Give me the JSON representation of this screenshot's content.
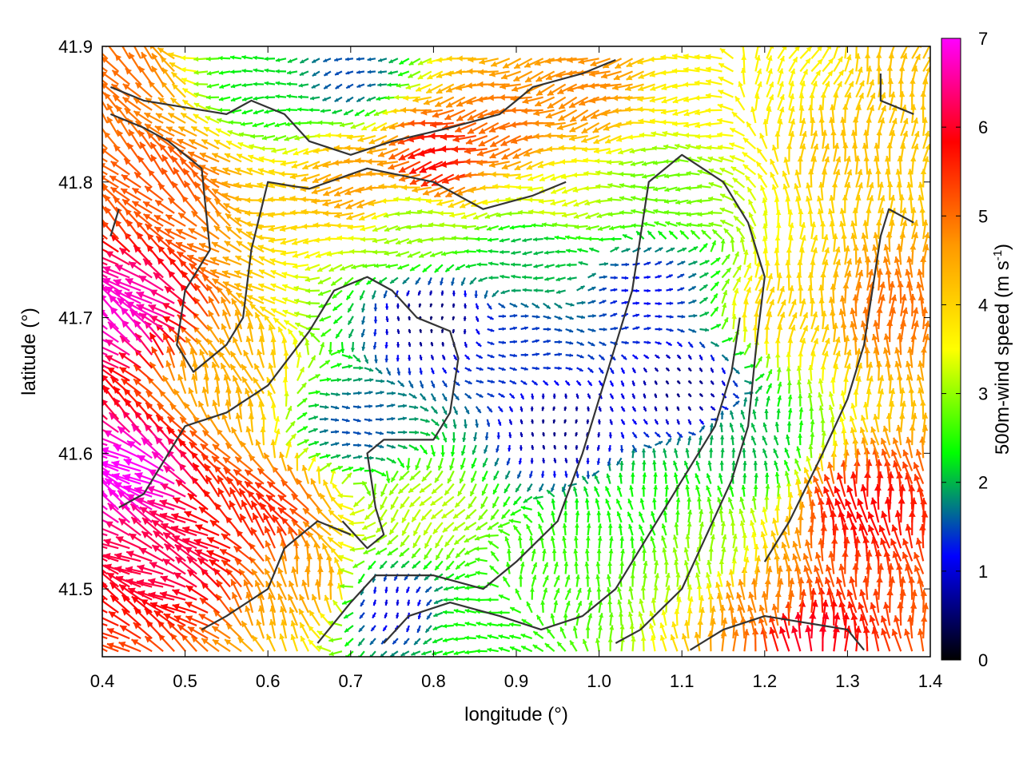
{
  "chart_data": {
    "type": "vector-field",
    "xlabel": "longitude (°)",
    "ylabel": "latitude (°)",
    "xlim": [
      0.4,
      1.4
    ],
    "ylim": [
      41.45,
      41.9
    ],
    "xticks": [
      "0.4",
      "0.5",
      "0.6",
      "0.7",
      "0.8",
      "0.9",
      "1.0",
      "1.1",
      "1.2",
      "1.3",
      "1.4"
    ],
    "yticks": [
      "41.5",
      "41.6",
      "41.7",
      "41.8",
      "41.9"
    ],
    "colorbar": {
      "label_main": "500m-wind speed (m s",
      "label_sup": "-1",
      "label_end": ")",
      "range": [
        0,
        7
      ],
      "ticks": [
        "0",
        "1",
        "2",
        "3",
        "4",
        "5",
        "6",
        "7"
      ],
      "palette": [
        "#000000",
        "#0000ff",
        "#00ff00",
        "#ffff00",
        "#ff9900",
        "#ff0000",
        "#ff00ff"
      ]
    },
    "regions": [
      {
        "lon": 0.44,
        "lat": 41.58,
        "speed": 7.0,
        "dir_deg": 150
      },
      {
        "lon": 0.43,
        "lat": 41.7,
        "speed": 6.8,
        "dir_deg": 145
      },
      {
        "lon": 0.5,
        "lat": 41.52,
        "speed": 6.2,
        "dir_deg": 155
      },
      {
        "lon": 0.6,
        "lat": 41.55,
        "speed": 5.6,
        "dir_deg": 130
      },
      {
        "lon": 0.48,
        "lat": 41.8,
        "speed": 5.2,
        "dir_deg": 135
      },
      {
        "lon": 0.65,
        "lat": 41.5,
        "speed": 4.6,
        "dir_deg": 100
      },
      {
        "lon": 0.55,
        "lat": 41.65,
        "speed": 4.4,
        "dir_deg": 110
      },
      {
        "lon": 0.42,
        "lat": 41.87,
        "speed": 5.0,
        "dir_deg": 130
      },
      {
        "lon": 0.6,
        "lat": 41.87,
        "speed": 2.2,
        "dir_deg": 185
      },
      {
        "lon": 0.7,
        "lat": 41.88,
        "speed": 1.5,
        "dir_deg": 200
      },
      {
        "lon": 0.82,
        "lat": 41.82,
        "speed": 5.8,
        "dir_deg": 195
      },
      {
        "lon": 0.9,
        "lat": 41.84,
        "speed": 5.0,
        "dir_deg": 195
      },
      {
        "lon": 0.72,
        "lat": 41.8,
        "speed": 4.6,
        "dir_deg": 190
      },
      {
        "lon": 0.78,
        "lat": 41.77,
        "speed": 3.0,
        "dir_deg": 185
      },
      {
        "lon": 0.95,
        "lat": 41.79,
        "speed": 3.4,
        "dir_deg": 188
      },
      {
        "lon": 1.0,
        "lat": 41.87,
        "speed": 4.8,
        "dir_deg": 200
      },
      {
        "lon": 1.12,
        "lat": 41.87,
        "speed": 3.6,
        "dir_deg": 185
      },
      {
        "lon": 0.92,
        "lat": 41.75,
        "speed": 2.0,
        "dir_deg": 180
      },
      {
        "lon": 0.8,
        "lat": 41.7,
        "speed": 0.5,
        "dir_deg": 270
      },
      {
        "lon": 0.9,
        "lat": 41.68,
        "speed": 1.4,
        "dir_deg": 0
      },
      {
        "lon": 0.95,
        "lat": 41.62,
        "speed": 0.6,
        "dir_deg": 270
      },
      {
        "lon": 1.05,
        "lat": 41.72,
        "speed": 1.2,
        "dir_deg": 10
      },
      {
        "lon": 1.1,
        "lat": 41.65,
        "speed": 0.6,
        "dir_deg": 300
      },
      {
        "lon": 0.7,
        "lat": 41.62,
        "speed": 1.5,
        "dir_deg": 0
      },
      {
        "lon": 0.8,
        "lat": 41.56,
        "speed": 3.2,
        "dir_deg": 230
      },
      {
        "lon": 0.75,
        "lat": 41.49,
        "speed": 1.0,
        "dir_deg": 250
      },
      {
        "lon": 0.86,
        "lat": 41.47,
        "speed": 2.4,
        "dir_deg": 180
      },
      {
        "lon": 0.95,
        "lat": 41.5,
        "speed": 2.6,
        "dir_deg": 80
      },
      {
        "lon": 1.05,
        "lat": 41.55,
        "speed": 2.4,
        "dir_deg": 100
      },
      {
        "lon": 1.12,
        "lat": 41.52,
        "speed": 3.0,
        "dir_deg": 90
      },
      {
        "lon": 1.2,
        "lat": 41.48,
        "speed": 4.8,
        "dir_deg": 95
      },
      {
        "lon": 1.32,
        "lat": 41.55,
        "speed": 5.8,
        "dir_deg": 100
      },
      {
        "lon": 1.35,
        "lat": 41.7,
        "speed": 5.0,
        "dir_deg": 90
      },
      {
        "lon": 1.3,
        "lat": 41.82,
        "speed": 4.2,
        "dir_deg": 85
      },
      {
        "lon": 1.22,
        "lat": 41.88,
        "speed": 3.6,
        "dir_deg": 60
      },
      {
        "lon": 1.22,
        "lat": 41.7,
        "speed": 4.0,
        "dir_deg": 80
      },
      {
        "lon": 1.18,
        "lat": 41.6,
        "speed": 2.0,
        "dir_deg": 100
      },
      {
        "lon": 1.25,
        "lat": 41.46,
        "speed": 6.0,
        "dir_deg": 95
      },
      {
        "lon": 1.08,
        "lat": 41.8,
        "speed": 2.8,
        "dir_deg": 180
      },
      {
        "lon": 1.38,
        "lat": 41.88,
        "speed": 4.2,
        "dir_deg": 75
      }
    ],
    "contours": [
      [
        [
          0.41,
          41.87
        ],
        [
          0.45,
          41.86
        ],
        [
          0.5,
          41.855
        ],
        [
          0.55,
          41.85
        ],
        [
          0.58,
          41.86
        ],
        [
          0.62,
          41.85
        ],
        [
          0.65,
          41.83
        ],
        [
          0.7,
          41.82
        ],
        [
          0.75,
          41.83
        ],
        [
          0.82,
          41.84
        ],
        [
          0.88,
          41.85
        ],
        [
          0.92,
          41.87
        ],
        [
          0.98,
          41.88
        ],
        [
          1.02,
          41.89
        ]
      ],
      [
        [
          0.41,
          41.85
        ],
        [
          0.45,
          41.84
        ],
        [
          0.48,
          41.83
        ],
        [
          0.52,
          41.81
        ],
        [
          0.53,
          41.75
        ],
        [
          0.5,
          41.72
        ],
        [
          0.49,
          41.68
        ],
        [
          0.51,
          41.66
        ],
        [
          0.55,
          41.68
        ],
        [
          0.57,
          41.7
        ],
        [
          0.58,
          41.75
        ],
        [
          0.6,
          41.8
        ],
        [
          0.65,
          41.795
        ],
        [
          0.72,
          41.81
        ],
        [
          0.8,
          41.8
        ],
        [
          0.86,
          41.78
        ],
        [
          0.92,
          41.79
        ],
        [
          0.96,
          41.8
        ]
      ],
      [
        [
          0.42,
          41.56
        ],
        [
          0.45,
          41.57
        ],
        [
          0.5,
          41.62
        ],
        [
          0.55,
          41.63
        ],
        [
          0.6,
          41.65
        ],
        [
          0.65,
          41.69
        ],
        [
          0.68,
          41.72
        ],
        [
          0.72,
          41.73
        ],
        [
          0.75,
          41.72
        ],
        [
          0.78,
          41.7
        ],
        [
          0.82,
          41.69
        ],
        [
          0.83,
          41.67
        ],
        [
          0.82,
          41.63
        ],
        [
          0.8,
          41.61
        ],
        [
          0.74,
          41.61
        ],
        [
          0.72,
          41.6
        ],
        [
          0.73,
          41.56
        ],
        [
          0.74,
          41.54
        ],
        [
          0.72,
          41.53
        ],
        [
          0.69,
          41.55
        ]
      ],
      [
        [
          0.52,
          41.47
        ],
        [
          0.55,
          41.48
        ],
        [
          0.6,
          41.5
        ],
        [
          0.62,
          41.53
        ],
        [
          0.66,
          41.55
        ],
        [
          0.7,
          41.54
        ]
      ],
      [
        [
          0.66,
          41.46
        ],
        [
          0.7,
          41.49
        ],
        [
          0.73,
          41.51
        ],
        [
          0.8,
          41.51
        ],
        [
          0.86,
          41.5
        ],
        [
          0.9,
          41.52
        ],
        [
          0.95,
          41.55
        ],
        [
          0.98,
          41.6
        ],
        [
          1.0,
          41.64
        ],
        [
          1.02,
          41.68
        ],
        [
          1.04,
          41.72
        ],
        [
          1.05,
          41.76
        ],
        [
          1.06,
          41.8
        ],
        [
          1.1,
          41.82
        ],
        [
          1.15,
          41.8
        ],
        [
          1.18,
          41.77
        ],
        [
          1.2,
          41.73
        ],
        [
          1.19,
          41.68
        ],
        [
          1.18,
          41.62
        ],
        [
          1.16,
          41.58
        ],
        [
          1.13,
          41.54
        ],
        [
          1.1,
          41.5
        ],
        [
          1.05,
          41.47
        ],
        [
          1.02,
          41.46
        ]
      ],
      [
        [
          0.74,
          41.46
        ],
        [
          0.77,
          41.48
        ],
        [
          0.82,
          41.49
        ],
        [
          0.88,
          41.48
        ],
        [
          0.93,
          41.47
        ],
        [
          0.98,
          41.48
        ],
        [
          1.02,
          41.5
        ],
        [
          1.06,
          41.54
        ],
        [
          1.1,
          41.58
        ],
        [
          1.14,
          41.62
        ],
        [
          1.16,
          41.66
        ],
        [
          1.17,
          41.7
        ]
      ],
      [
        [
          1.11,
          41.455
        ],
        [
          1.15,
          41.47
        ],
        [
          1.2,
          41.48
        ],
        [
          1.25,
          41.475
        ],
        [
          1.3,
          41.47
        ],
        [
          1.32,
          41.455
        ]
      ],
      [
        [
          1.2,
          41.52
        ],
        [
          1.23,
          41.55
        ],
        [
          1.27,
          41.6
        ],
        [
          1.3,
          41.64
        ],
        [
          1.32,
          41.68
        ],
        [
          1.33,
          41.72
        ],
        [
          1.34,
          41.76
        ],
        [
          1.35,
          41.78
        ],
        [
          1.38,
          41.77
        ]
      ],
      [
        [
          1.34,
          41.88
        ],
        [
          1.34,
          41.86
        ],
        [
          1.38,
          41.85
        ]
      ],
      [
        [
          0.41,
          41.76
        ],
        [
          0.42,
          41.78
        ]
      ]
    ]
  }
}
